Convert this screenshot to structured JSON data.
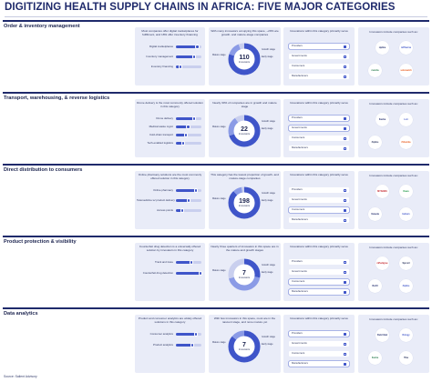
{
  "title": "DIGITIZING HEALTH SUPPLY CHAINS IN AFRICA: FIVE MAJOR CATEGORIES",
  "source": "Source: Salient Advisory",
  "colors": {
    "navy": "#1f2a6b",
    "panel": "#e9ecf8",
    "accent": "#3f55c9",
    "light_accent": "#8b9be6",
    "pale_accent": "#c9cfee"
  },
  "common": {
    "innovators_unit": "Innovators",
    "category_head": "Innovations within this category primarily serve",
    "logo_head": "Innovators include companies such as:",
    "categories": [
      "Providers",
      "Governments",
      "Consumers",
      "Manufacturers"
    ],
    "stages": [
      "Early stage",
      "Growth stage",
      "Mature stage"
    ]
  },
  "sections": [
    {
      "label": "Order & inventory management",
      "desc": "Most companies offer digital marketplaces for fulfillment, and 18% offer inventory financing",
      "bars": [
        {
          "label": "Digital marketplaces",
          "value": 0.84
        },
        {
          "label": "Inventory management",
          "value": 0.72
        },
        {
          "label": "Inventory financing",
          "value": 0.18
        }
      ],
      "donut_desc": "With many innovators occupying this space, ~20% are growth- and mature-stage companies",
      "total": "110",
      "stage_share": [
        0.8,
        0.14,
        0.06
      ],
      "highlight": [
        "Providers"
      ],
      "logos": [
        {
          "text": "zipline",
          "color": "#1f2a6b"
        },
        {
          "text": "mPharma",
          "color": "#3f55c9"
        },
        {
          "text": "maisha",
          "color": "#2a7d4f"
        },
        {
          "text": "sokowatch",
          "color": "#e85a1c"
        }
      ]
    },
    {
      "label": "Transport, warehousing, & reverse logistics",
      "desc": "Drone delivery is the most commonly offered solution in this category",
      "bars": [
        {
          "label": "Drone delivery",
          "value": 0.7
        },
        {
          "label": "Medical waste mgmt",
          "value": 0.48
        },
        {
          "label": "Cold-chain transport",
          "value": 0.4
        },
        {
          "label": "Tech-enabled logistics",
          "value": 0.3
        }
      ],
      "donut_desc": "Nearly 30% of companies are in growth and mature stage",
      "total": "22",
      "stage_share": [
        0.7,
        0.2,
        0.1
      ],
      "highlight": [
        "Providers",
        "Governments"
      ],
      "logos": [
        {
          "text": "Kasha",
          "color": "#1f2a6b"
        },
        {
          "text": "Lori",
          "color": "#3f55c9"
        },
        {
          "text": "Zipline",
          "color": "#2a335e"
        },
        {
          "text": "iShamba",
          "color": "#e85a1c"
        }
      ]
    },
    {
      "label": "Direct distribution to consumers",
      "desc": "Online pharmacy solutions are the most commonly offered solution in this category",
      "bars": [
        {
          "label": "Online pharmacy",
          "value": 0.8
        },
        {
          "label": "Telemedicine w/ product delivery",
          "value": 0.5
        },
        {
          "label": "Access points",
          "value": 0.25
        }
      ],
      "donut_desc": "This category has the lowest proportion of growth- and mature-stage companies",
      "total": "198",
      "stage_share": [
        0.88,
        0.09,
        0.03
      ],
      "highlight": [
        "Consumers"
      ],
      "logos": [
        {
          "text": "MYDAWA",
          "color": "#c4262e"
        },
        {
          "text": "Dawa",
          "color": "#2a9d4f"
        },
        {
          "text": "Vezeeta",
          "color": "#1f2a6b"
        },
        {
          "text": "Helium",
          "color": "#3f55c9"
        }
      ]
    },
    {
      "label": "Product protection & visibility",
      "desc": "Counterfeit drug detection is a universally offered solution by innovators in this category",
      "bars": [
        {
          "label": "Track and trace",
          "value": 0.62
        },
        {
          "label": "Counterfeit drug detection",
          "value": 0.95
        }
      ],
      "donut_desc": "Nearly three quarters of innovators in this space are in the mature and growth stages",
      "total": "7",
      "stage_share": [
        0.28,
        0.43,
        0.29
      ],
      "highlight": [
        "Manufacturers",
        "Consumers"
      ],
      "logos": [
        {
          "text": "mPedigree",
          "color": "#c4262e"
        },
        {
          "text": "Sproxil",
          "color": "#2a335e"
        },
        {
          "text": "RxAll",
          "color": "#1f2a6b"
        },
        {
          "text": "Zipline",
          "color": "#3f55c9"
        }
      ]
    },
    {
      "label": "Data analytics",
      "desc": "Product and consumer analytics are widely offered solutions in this category",
      "bars": [
        {
          "label": "Consumer analytics",
          "value": 0.78
        },
        {
          "label": "Product analytics",
          "value": 0.65
        }
      ],
      "donut_desc": "With few innovators in this space, most are in the nascent stage, and none mature yet",
      "total": "7",
      "stage_share": [
        0.86,
        0.14,
        0.0
      ],
      "highlight": [
        "Providers",
        "Manufacturers"
      ],
      "logos": [
        {
          "text": "Field Intel",
          "color": "#1f2a6b"
        },
        {
          "text": "Rology",
          "color": "#3f55c9"
        },
        {
          "text": "Kasha",
          "color": "#2a7d4f"
        },
        {
          "text": "Tiba",
          "color": "#2a335e"
        }
      ]
    }
  ]
}
